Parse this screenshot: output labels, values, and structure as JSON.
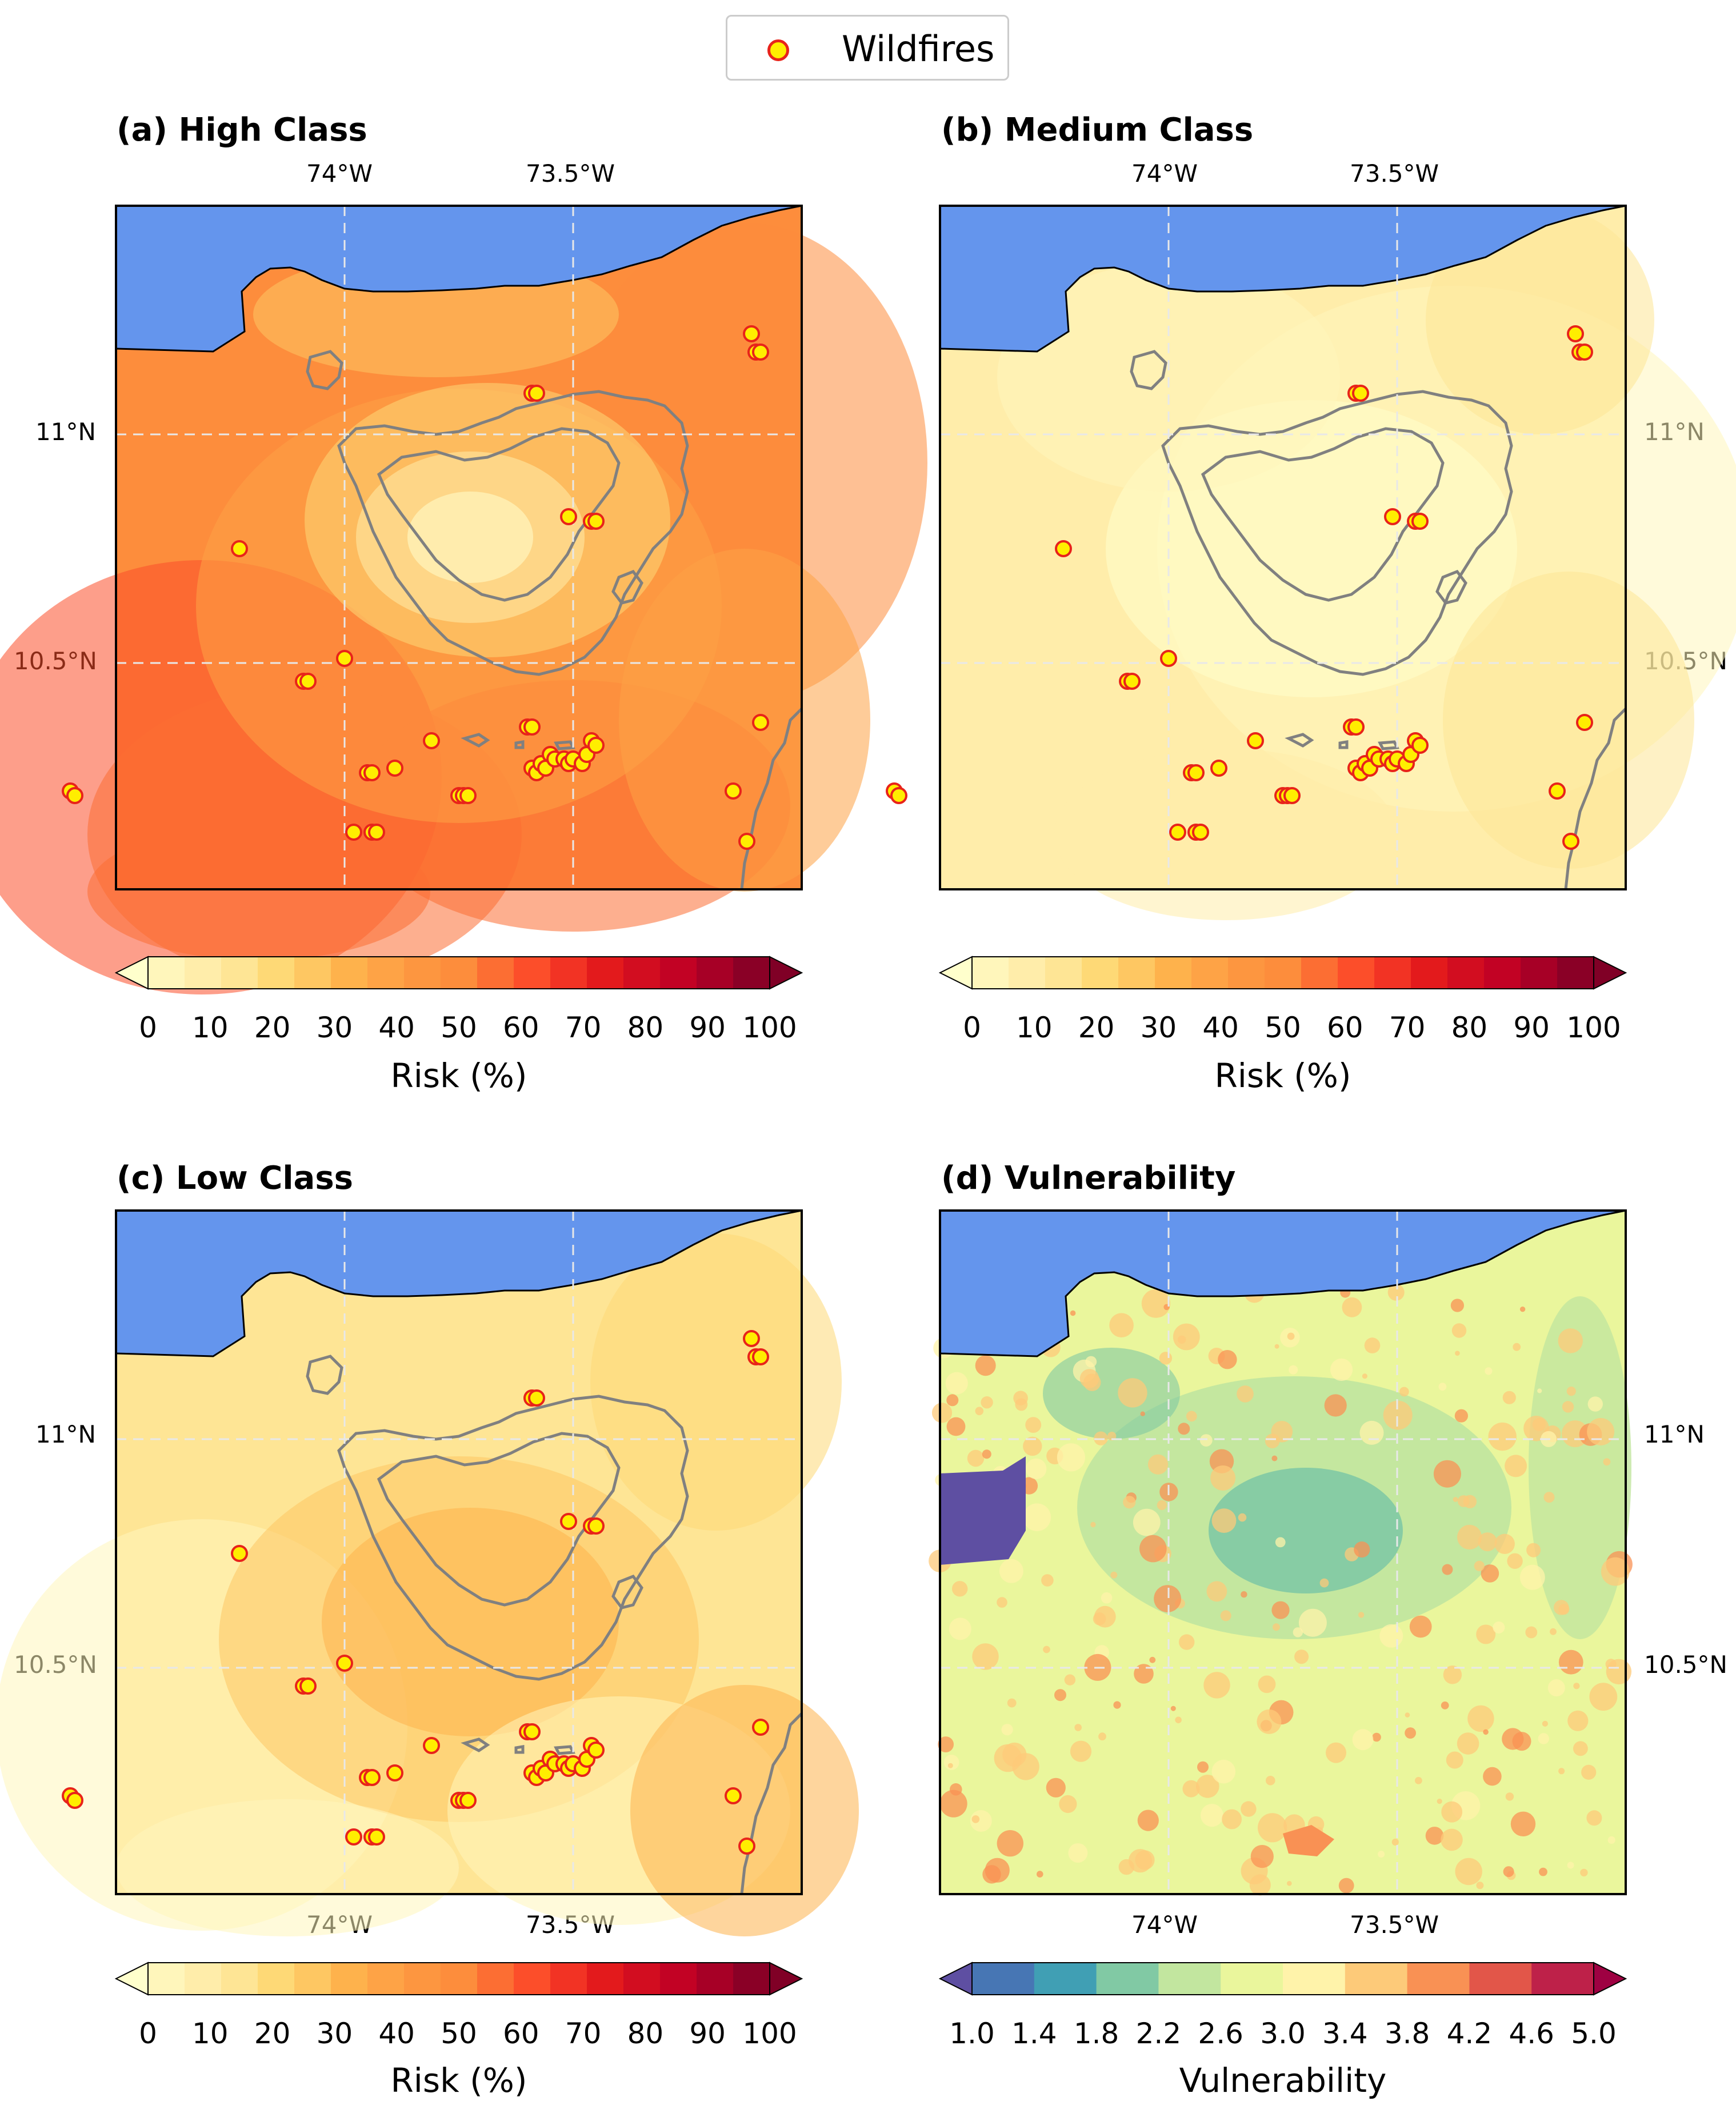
{
  "legend": {
    "label": "Wildfires",
    "marker_fill": "#ffee00",
    "marker_edge": "#e8231a"
  },
  "colors": {
    "sea": "#6495ed",
    "coast": "#000000",
    "contour": "#808080",
    "grid": "#e8e8e8",
    "risk_scale": [
      "#ffffcc",
      "#fff6bb",
      "#ffedaa",
      "#fee595",
      "#fed976",
      "#fec762",
      "#feb24c",
      "#fea346",
      "#fd9640",
      "#fd8d3c",
      "#fc6e33",
      "#fc4e2a",
      "#f23324",
      "#e31a1c",
      "#d20d20",
      "#c20224",
      "#a70026",
      "#8a0026",
      "#800026"
    ],
    "vuln_scale": [
      "#5e4fa2",
      "#4776b4",
      "#409fb4",
      "#81c9a4",
      "#c2e69f",
      "#eaf69c",
      "#fff3aa",
      "#fdca79",
      "#f99154",
      "#e25649",
      "#be2149",
      "#9e0142"
    ]
  },
  "panels": {
    "a": {
      "title": "(a) High Class"
    },
    "b": {
      "title": "(b) Medium Class"
    },
    "c": {
      "title": "(c) Low Class"
    },
    "d": {
      "title": "(d) Vulnerability"
    }
  },
  "axes": {
    "lon_ticks": [
      "74°W",
      "73.5°W"
    ],
    "lat_ticks": [
      "11°N",
      "10.5°N"
    ]
  },
  "colorbars": {
    "risk": {
      "ticks": [
        "0",
        "10",
        "20",
        "30",
        "40",
        "50",
        "60",
        "70",
        "80",
        "90",
        "100"
      ],
      "label": "Risk (%)"
    },
    "vulnerability": {
      "ticks": [
        "1.0",
        "1.4",
        "1.8",
        "2.2",
        "2.6",
        "3.0",
        "3.4",
        "3.8",
        "4.2",
        "4.6",
        "5.0"
      ],
      "label": "Vulnerability"
    }
  },
  "wildfires_lonlat": [
    [
      -74.5,
      10.22
    ],
    [
      -74.49,
      10.21
    ],
    [
      -74.13,
      10.75
    ],
    [
      -73.99,
      10.46
    ],
    [
      -73.98,
      10.46
    ],
    [
      -73.9,
      10.51
    ],
    [
      -73.85,
      10.26
    ],
    [
      -73.84,
      10.26
    ],
    [
      -73.79,
      10.27
    ],
    [
      -73.88,
      10.13
    ],
    [
      -73.84,
      10.13
    ],
    [
      -73.83,
      10.13
    ],
    [
      -73.71,
      10.33
    ],
    [
      -73.65,
      10.21
    ],
    [
      -73.64,
      10.21
    ],
    [
      -73.63,
      10.21
    ],
    [
      -73.5,
      10.36
    ],
    [
      -73.49,
      10.36
    ],
    [
      -73.49,
      10.27
    ],
    [
      -73.48,
      10.26
    ],
    [
      -73.47,
      10.28
    ],
    [
      -73.46,
      10.27
    ],
    [
      -73.45,
      10.3
    ],
    [
      -73.44,
      10.29
    ],
    [
      -73.42,
      10.29
    ],
    [
      -73.41,
      10.28
    ],
    [
      -73.4,
      10.29
    ],
    [
      -73.38,
      10.28
    ],
    [
      -73.37,
      10.3
    ],
    [
      -73.36,
      10.33
    ],
    [
      -73.35,
      10.32
    ],
    [
      -73.49,
      11.09
    ],
    [
      -73.48,
      11.09
    ],
    [
      -73.41,
      10.82
    ],
    [
      -73.36,
      10.81
    ],
    [
      -73.35,
      10.81
    ],
    [
      -73.05,
      10.22
    ],
    [
      -73.02,
      10.11
    ],
    [
      -72.99,
      10.37
    ],
    [
      -73.01,
      11.22
    ],
    [
      -73.0,
      11.18
    ],
    [
      -72.99,
      11.18
    ]
  ]
}
